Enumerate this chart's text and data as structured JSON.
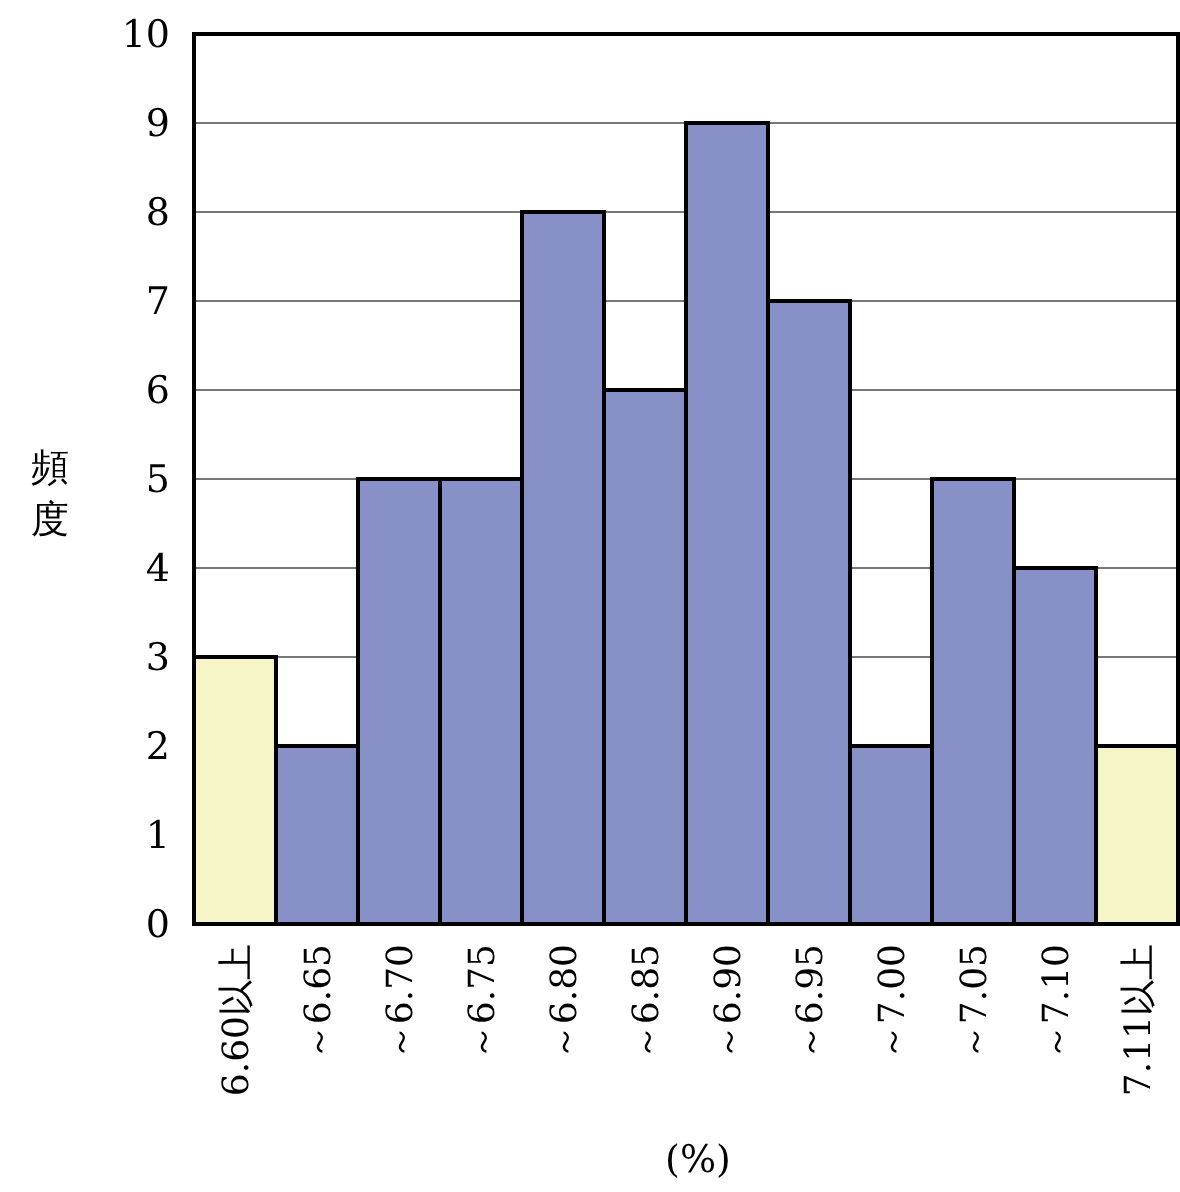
{
  "chart_data": {
    "type": "bar",
    "xlabel": "(%)",
    "ylabel": "頻度",
    "categories": [
      "6.60以上",
      "～6.65",
      "～6.70",
      "～6.75",
      "～6.80",
      "～6.85",
      "～6.90",
      "～6.95",
      "～7.00",
      "～7.05",
      "～7.10",
      "7.11以上"
    ],
    "values": [
      3,
      2,
      5,
      5,
      8,
      6,
      9,
      7,
      2,
      5,
      4,
      2
    ],
    "colors": [
      "#f5f5c8",
      "#8890c8",
      "#8890c8",
      "#8890c8",
      "#8890c8",
      "#8890c8",
      "#8890c8",
      "#8890c8",
      "#8890c8",
      "#8890c8",
      "#8890c8",
      "#f5f5c8"
    ],
    "ylim": [
      0,
      10
    ],
    "yticks": [
      0,
      1,
      2,
      3,
      4,
      5,
      6,
      7,
      8,
      9,
      10
    ],
    "grid": "y"
  }
}
